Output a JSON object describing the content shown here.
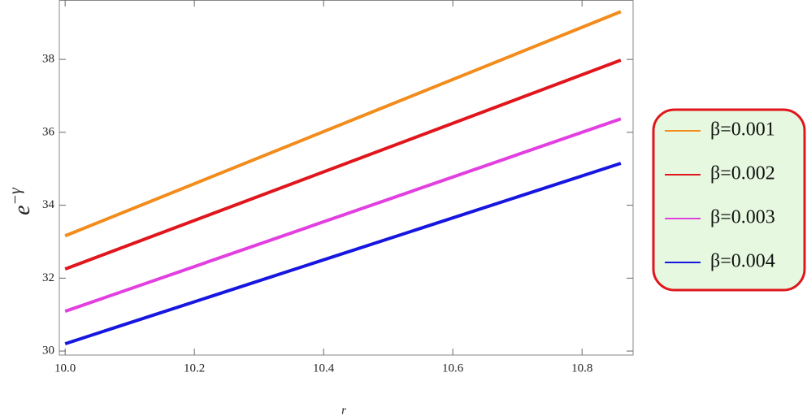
{
  "chart_data": {
    "type": "line",
    "xlabel": "r",
    "ylabel": {
      "base": "e",
      "sup": "−γ"
    },
    "x": [
      10.0,
      10.86
    ],
    "series": [
      {
        "name": "β=0.001",
        "color": "#f28c1c",
        "values": [
          33.16,
          39.31
        ]
      },
      {
        "name": "β=0.002",
        "color": "#e0161c",
        "values": [
          32.25,
          37.98
        ]
      },
      {
        "name": "β=0.003",
        "color": "#e23fe0",
        "values": [
          31.09,
          36.37
        ]
      },
      {
        "name": "β=0.004",
        "color": "#1616e0",
        "values": [
          30.2,
          35.15
        ]
      }
    ],
    "xlim": [
      9.991,
      10.879
    ],
    "ylim": [
      29.89,
      39.63
    ],
    "xticks": [
      {
        "value": 10,
        "label": "10.0"
      },
      10.2,
      10.4,
      10.6,
      10.8
    ],
    "yticks": [
      30,
      32,
      34,
      36,
      38
    ],
    "legend": "right"
  }
}
